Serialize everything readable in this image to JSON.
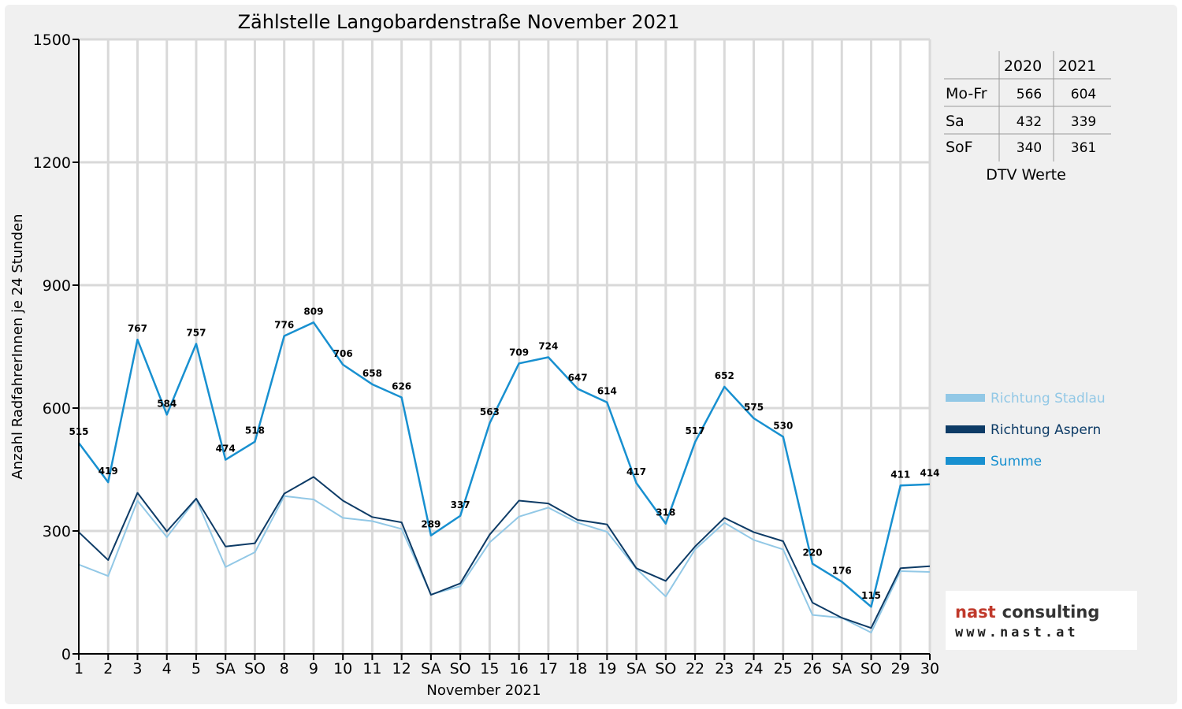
{
  "chart_data": {
    "type": "line",
    "title": "Zählstelle Langobardenstraße November 2021",
    "xlabel": "November 2021",
    "ylabel": "Anzahl RadfahrerInnen je 24 Stunden",
    "ylim": [
      0,
      1500
    ],
    "yticks": [
      "0",
      "300",
      "600",
      "900",
      "1200",
      "1500"
    ],
    "grid": true,
    "legend_position": "right",
    "categories": [
      "1",
      "2",
      "3",
      "4",
      "5",
      "SA",
      "SO",
      "8",
      "9",
      "10",
      "11",
      "12",
      "SA",
      "SO",
      "15",
      "16",
      "17",
      "18",
      "19",
      "SA",
      "SO",
      "22",
      "23",
      "24",
      "25",
      "26",
      "SA",
      "SO",
      "29",
      "30"
    ],
    "red_categories": [
      0,
      6,
      13,
      20,
      27
    ],
    "series": [
      {
        "name": "Richtung Stadlau",
        "color": "#92c8e6",
        "values": [
          218,
          190,
          374,
          285,
          378,
          212,
          248,
          385,
          377,
          332,
          324,
          305,
          145,
          165,
          272,
          335,
          357,
          320,
          298,
          208,
          140,
          255,
          320,
          278,
          255,
          95,
          88,
          52,
          202,
          200
        ]
      },
      {
        "name": "Richtung Aspern",
        "color": "#0d3b66",
        "values": [
          297,
          229,
          393,
          299,
          379,
          262,
          270,
          391,
          432,
          374,
          334,
          321,
          144,
          172,
          291,
          374,
          367,
          327,
          316,
          209,
          178,
          262,
          332,
          297,
          275,
          125,
          88,
          63,
          209,
          214
        ]
      },
      {
        "name": "Summe",
        "color": "#1890d0",
        "values": [
          515,
          419,
          767,
          584,
          757,
          474,
          518,
          776,
          809,
          706,
          658,
          626,
          289,
          337,
          563,
          709,
          724,
          647,
          614,
          417,
          318,
          517,
          652,
          575,
          530,
          220,
          176,
          115,
          411,
          414
        ]
      }
    ]
  },
  "dtv_table": {
    "years": [
      "2020",
      "2021"
    ],
    "rows": [
      {
        "label": "Mo-Fr",
        "v2020": "566",
        "v2021": "604"
      },
      {
        "label": "Sa",
        "v2020": "432",
        "v2021": "339"
      },
      {
        "label": "SoF",
        "v2020": "340",
        "v2021": "361"
      }
    ],
    "caption": "DTV Werte"
  },
  "logo": {
    "word1": "nast",
    "word2": "consulting",
    "url": "www.nast.at",
    "color1": "#c0392b",
    "color2": "#333333"
  },
  "colors": {
    "holiday_red": "#ff0000"
  }
}
